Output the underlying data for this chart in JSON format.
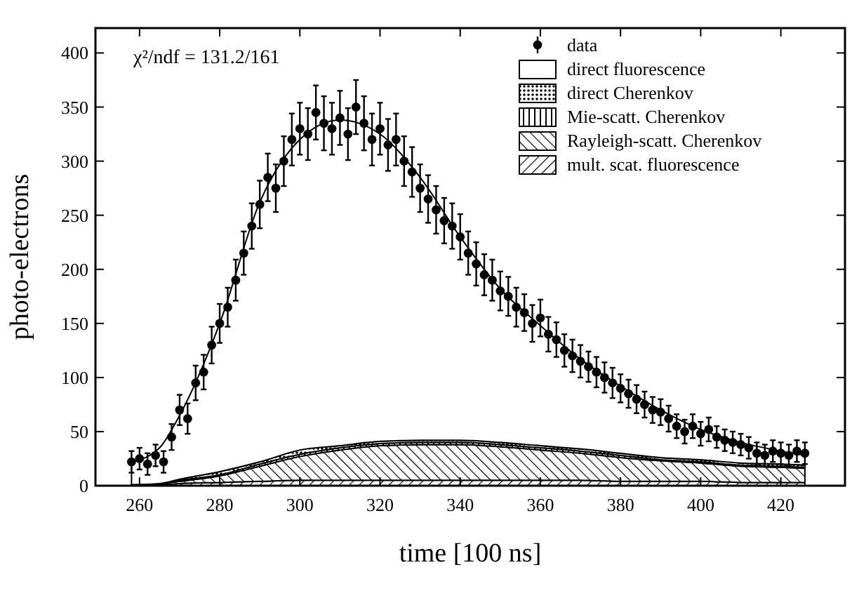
{
  "chart_data": {
    "type": "area",
    "stacked": true,
    "xlabel": "time [100 ns]",
    "ylabel": "photo-electrons",
    "annotations": [
      "χ²/ndf = 131.2/161"
    ],
    "xlim": [
      249,
      436
    ],
    "ylim": [
      0,
      423
    ],
    "xticks": [
      260,
      280,
      300,
      320,
      340,
      360,
      380,
      400,
      420
    ],
    "yticks": [
      0,
      50,
      100,
      150,
      200,
      250,
      300,
      350,
      400
    ],
    "legend": "top right",
    "series": [
      {
        "name": "mult. scat. fluorescence",
        "color": "#000000",
        "x": [
          258,
          265,
          270,
          280,
          290,
          300,
          310,
          320,
          330,
          340,
          350,
          360,
          370,
          380,
          390,
          400,
          410,
          420,
          426
        ],
        "values": [
          1,
          1,
          2,
          3,
          4,
          5,
          5,
          5,
          5,
          5,
          5,
          5,
          5,
          4,
          4,
          4,
          3,
          3,
          3
        ]
      },
      {
        "name": "Rayleigh-scatt. Cherenkov",
        "color": "#000000",
        "x": [
          258,
          265,
          270,
          280,
          290,
          300,
          310,
          320,
          330,
          340,
          350,
          360,
          370,
          380,
          390,
          400,
          410,
          420,
          426
        ],
        "values": [
          0,
          1,
          2,
          6,
          14,
          22,
          28,
          32,
          33,
          33,
          31,
          28,
          25,
          22,
          19,
          17,
          15,
          14,
          13
        ]
      },
      {
        "name": "Mie-scatt. Cherenkov",
        "color": "#000000",
        "x": [
          258,
          265,
          270,
          280,
          290,
          300,
          310,
          320,
          330,
          340,
          350,
          360,
          370,
          380,
          390,
          400,
          410,
          420,
          426
        ],
        "values": [
          0,
          0,
          1,
          1,
          2,
          2,
          2,
          2,
          2,
          2,
          2,
          2,
          2,
          2,
          1,
          1,
          1,
          1,
          1
        ]
      },
      {
        "name": "direct Cherenkov",
        "color": "#000000",
        "x": [
          258,
          265,
          270,
          280,
          290,
          300,
          310,
          320,
          330,
          340,
          350,
          360,
          370,
          380,
          390,
          400,
          410,
          420,
          426
        ],
        "values": [
          0,
          0,
          1,
          3,
          2,
          4,
          2,
          2,
          2,
          2,
          2,
          2,
          2,
          2,
          2,
          2,
          2,
          2,
          2
        ]
      },
      {
        "name": "direct fluorescence",
        "color": "#ffffff",
        "x": [
          258,
          265,
          270,
          280,
          290,
          300,
          310,
          320,
          330,
          340,
          350,
          360,
          370,
          380,
          390,
          400,
          410,
          420,
          426
        ],
        "values": [
          21,
          33,
          59,
          137,
          240,
          287,
          301,
          284,
          243,
          188,
          142,
          111,
          83,
          62,
          44,
          28,
          19,
          12,
          9
        ]
      },
      {
        "name": "data",
        "type": "scatter",
        "marker": "circle",
        "color": "#000000",
        "x": [
          258,
          260,
          262,
          264,
          266,
          268,
          270,
          272,
          274,
          276,
          278,
          280,
          282,
          284,
          286,
          288,
          290,
          292,
          294,
          296,
          298,
          300,
          302,
          304,
          306,
          308,
          310,
          312,
          314,
          316,
          318,
          320,
          322,
          324,
          326,
          328,
          330,
          332,
          334,
          336,
          338,
          340,
          342,
          344,
          346,
          348,
          350,
          352,
          354,
          356,
          358,
          360,
          362,
          364,
          366,
          368,
          370,
          372,
          374,
          376,
          378,
          380,
          382,
          384,
          386,
          388,
          390,
          392,
          394,
          396,
          398,
          400,
          402,
          404,
          406,
          408,
          410,
          412,
          414,
          416,
          418,
          420,
          422,
          424,
          426
        ],
        "values": [
          22,
          25,
          20,
          28,
          22,
          45,
          70,
          62,
          95,
          105,
          130,
          150,
          165,
          190,
          215,
          240,
          260,
          285,
          275,
          300,
          320,
          330,
          325,
          345,
          335,
          330,
          340,
          325,
          350,
          335,
          320,
          330,
          315,
          320,
          300,
          290,
          275,
          265,
          255,
          245,
          240,
          230,
          215,
          205,
          195,
          190,
          180,
          175,
          165,
          160,
          150,
          155,
          140,
          135,
          125,
          120,
          115,
          110,
          105,
          100,
          95,
          90,
          85,
          80,
          75,
          70,
          68,
          62,
          55,
          50,
          55,
          48,
          52,
          45,
          42,
          40,
          38,
          35,
          30,
          28,
          32,
          30,
          28,
          32,
          30
        ],
        "errors": [
          10,
          10,
          10,
          10,
          10,
          12,
          14,
          14,
          16,
          16,
          17,
          18,
          18,
          19,
          20,
          21,
          22,
          22,
          22,
          23,
          24,
          24,
          24,
          25,
          25,
          24,
          25,
          24,
          25,
          25,
          24,
          24,
          24,
          24,
          23,
          23,
          22,
          22,
          22,
          21,
          21,
          21,
          20,
          20,
          19,
          19,
          18,
          18,
          18,
          17,
          17,
          17,
          16,
          16,
          15,
          15,
          15,
          14,
          14,
          14,
          14,
          13,
          13,
          13,
          12,
          12,
          12,
          12,
          11,
          11,
          11,
          11,
          11,
          10,
          10,
          10,
          10,
          10,
          10,
          10,
          10,
          10,
          10,
          10,
          10
        ]
      }
    ]
  }
}
